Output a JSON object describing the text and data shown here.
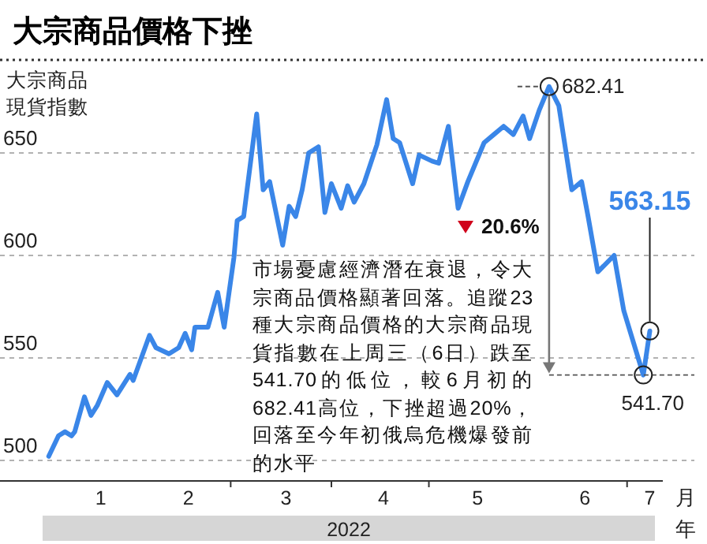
{
  "chart_data": {
    "type": "line",
    "title": "大宗商品價格下挫",
    "ylabel": "大宗商品現貨指數",
    "xlabel": "月",
    "x": [
      "2022-01-04",
      "2022-01-07",
      "2022-01-09",
      "2022-01-11",
      "2022-01-12",
      "2022-01-15",
      "2022-01-17",
      "2022-01-19",
      "2022-01-22",
      "2022-01-25",
      "2022-01-29",
      "2022-01-30",
      "2022-02-04",
      "2022-02-06",
      "2022-02-10",
      "2022-02-13",
      "2022-02-15",
      "2022-02-17",
      "2022-02-18",
      "2022-02-22",
      "2022-02-25",
      "2022-02-27",
      "2022-03-02",
      "2022-03-03",
      "2022-03-05",
      "2022-03-09",
      "2022-03-11",
      "2022-03-13",
      "2022-03-17",
      "2022-03-19",
      "2022-03-21",
      "2022-03-23",
      "2022-03-25",
      "2022-03-28",
      "2022-03-30",
      "2022-04-01",
      "2022-04-04",
      "2022-04-06",
      "2022-04-08",
      "2022-04-11",
      "2022-04-15",
      "2022-04-18",
      "2022-04-20",
      "2022-04-22",
      "2022-04-26",
      "2022-04-28",
      "2022-05-02",
      "2022-05-04",
      "2022-05-07",
      "2022-05-10",
      "2022-05-13",
      "2022-05-18",
      "2022-05-21",
      "2022-05-24",
      "2022-05-27",
      "2022-05-30",
      "2022-06-01",
      "2022-06-04",
      "2022-06-07",
      "2022-06-10",
      "2022-06-14",
      "2022-06-17",
      "2022-06-19",
      "2022-06-22",
      "2022-06-27",
      "2022-06-30",
      "2022-07-06",
      "2022-07-08"
    ],
    "series": [
      {
        "color": "#3a86e8",
        "values": [
          502,
          512,
          514,
          512,
          514,
          531,
          522,
          527,
          538,
          532,
          542,
          539,
          561,
          555,
          552,
          555,
          562,
          554,
          565,
          565,
          582,
          565,
          599,
          617,
          619,
          669,
          632,
          636,
          605,
          624,
          619,
          632,
          650,
          653,
          621,
          635,
          623,
          634,
          626,
          635,
          654,
          676,
          657,
          655,
          635,
          649,
          646,
          645,
          663,
          623,
          636,
          655,
          659,
          663,
          659,
          668,
          657,
          671,
          682.41,
          673,
          632,
          636,
          619,
          592,
          600,
          573,
          541.7,
          563.15
        ]
      }
    ],
    "xlim": [
      "2021-12-20",
      "2022-07-12"
    ],
    "ylim": [
      490,
      695
    ],
    "xticks": [
      {
        "value": "2022-01-20",
        "label": "1"
      },
      {
        "value": "2022-02-16",
        "label": "2"
      },
      {
        "value": "2022-03-18",
        "label": "3"
      },
      {
        "value": "2022-04-17",
        "label": "4"
      },
      {
        "value": "2022-05-16",
        "label": "5"
      },
      {
        "value": "2022-06-18",
        "label": "6"
      },
      {
        "value": "2022-07-08",
        "label": "7"
      },
      {
        "value": "2022-03-01",
        "label": null
      },
      {
        "value": "2022-04-01",
        "label": null
      },
      {
        "value": "2022-05-01",
        "label": null
      },
      {
        "value": "2022-07-01",
        "label": null
      }
    ],
    "yticks": [
      500,
      550,
      600,
      650
    ],
    "grid": "y",
    "annotations": [
      {
        "text": "682.41",
        "x": "2022-06-07",
        "y": 682.41
      },
      {
        "text": "541.70",
        "x": "2022-07-06",
        "y": 541.7
      },
      {
        "text": "563.15",
        "x": "2022-07-08",
        "y": 563.15
      },
      "20.6%",
      "市場憂慮經濟潛在衰退，令大宗商品價格顯著回落。追蹤23種大宗商品價格的大宗商品現貨指數在上周三（6日）跌至541.70的低位，較6月初的682.41高位，下挫超過20%，回落至今年初俄烏危機爆發前的水平",
      "2022",
      "年"
    ]
  }
}
